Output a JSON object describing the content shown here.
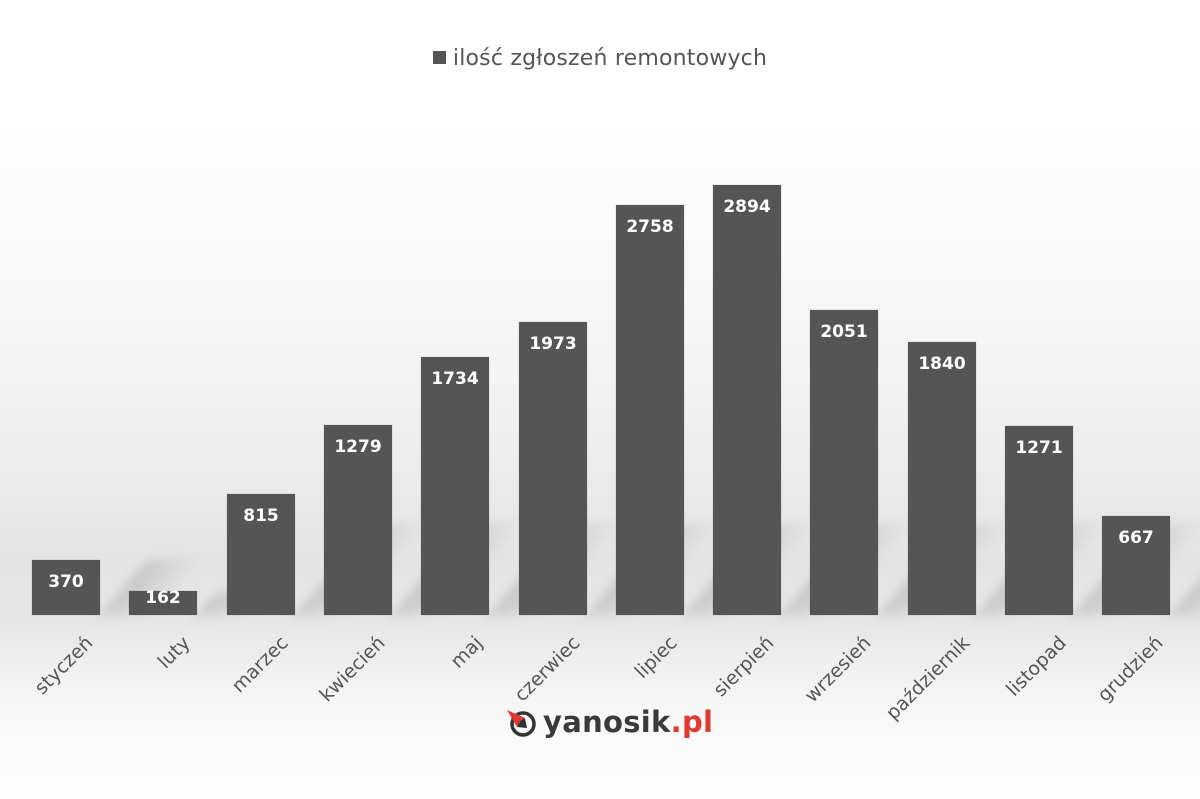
{
  "chart_data": {
    "type": "bar",
    "title": "",
    "legend": [
      {
        "label": "ilość zgłoszeń remontowych",
        "color": "#555555"
      }
    ],
    "legend_position": "top",
    "xlabel": "",
    "ylabel": "",
    "grid": false,
    "ylim": [
      0,
      2894
    ],
    "categories": [
      "styczeń",
      "luty",
      "marzec",
      "kwiecień",
      "maj",
      "czerwiec",
      "lipiec",
      "sierpień",
      "wrzesień",
      "październik",
      "listopad",
      "grudzień"
    ],
    "series": [
      {
        "name": "ilość zgłoszeń remontowych",
        "values": [
          370,
          162,
          815,
          1279,
          1734,
          1973,
          2758,
          2894,
          2051,
          1840,
          1271,
          667
        ]
      }
    ],
    "data_labels": [
      "370",
      "162",
      "815",
      "1279",
      "1734",
      "1973",
      "2758",
      "2894",
      "2051",
      "1840",
      "1271",
      "667"
    ]
  },
  "legend": {
    "label": "ilość zgłoszeń remontowych"
  },
  "logo": {
    "brand": "yanosik",
    "tld": ".pl"
  },
  "colors": {
    "bar": "#555555",
    "label_text": "#ffffff",
    "axis_text": "#555555",
    "logo_accent": "#e03a2f"
  }
}
